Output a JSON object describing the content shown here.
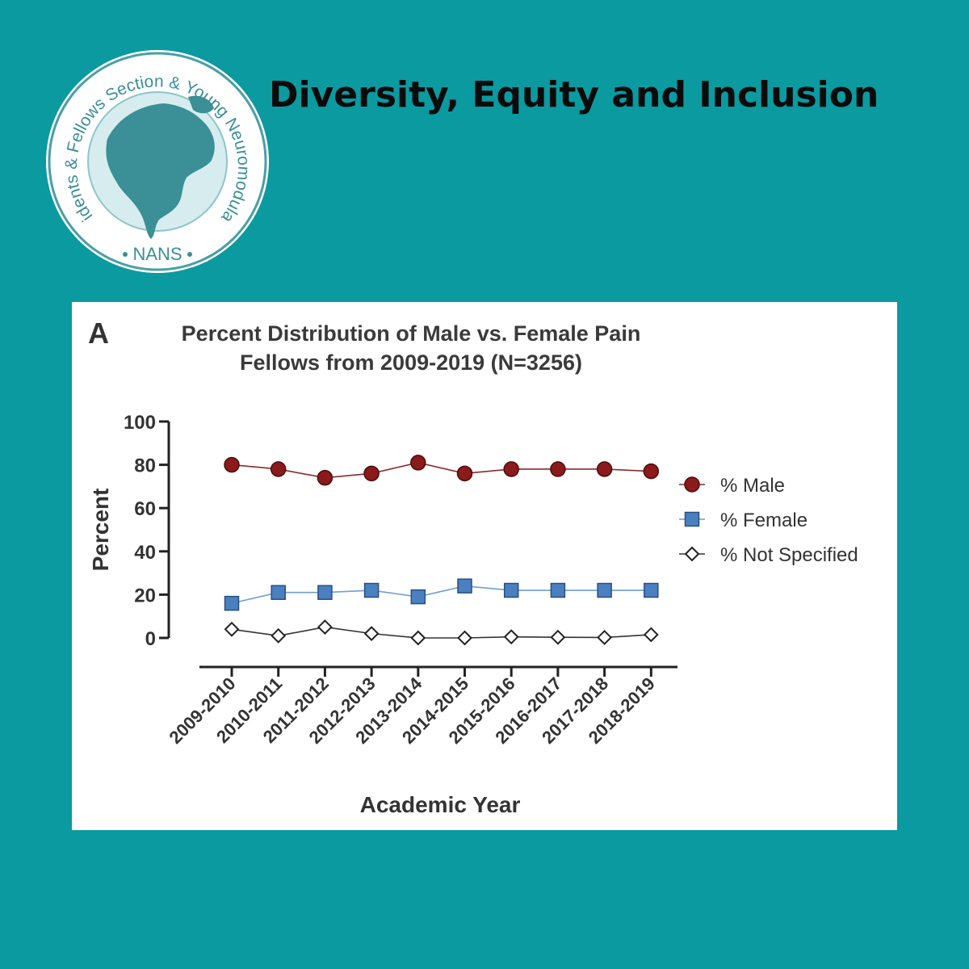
{
  "header": {
    "title": "Diversity, Equity and Inclusion"
  },
  "logo": {
    "ring_text": "Residents & Fellows Section & Young Neuromodulators",
    "org": "NANS",
    "colors": {
      "ring": "#4a9ea5",
      "map": "#3b8f96",
      "globe": "#d6ecee"
    }
  },
  "figure": {
    "panel_letter": "A"
  },
  "chart_data": {
    "type": "line",
    "title_line1": "Percent Distribution of Male vs. Female Pain",
    "title_line2": "Fellows from 2009-2019 (N=3256)",
    "xlabel": "Academic Year",
    "ylabel": "Percent",
    "ylim": [
      0,
      100
    ],
    "yticks": [
      0,
      20,
      40,
      60,
      80,
      100
    ],
    "categories": [
      "2009-2010",
      "2010-2011",
      "2011-2012",
      "2012-2013",
      "2013-2014",
      "2014-2015",
      "2015-2016",
      "2016-2017",
      "2017-2018",
      "2018-2019"
    ],
    "legend_position": "right",
    "grid": false,
    "series": [
      {
        "name": "% Male",
        "marker": "circle",
        "color": "#8b1a1a",
        "line_color": "#8b2a2a",
        "values": [
          80,
          78,
          74,
          76,
          81,
          76,
          78,
          78,
          78,
          77
        ]
      },
      {
        "name": "% Female",
        "marker": "square",
        "color": "#4a7fc0",
        "line_color": "#6f9fd0",
        "values": [
          16,
          21,
          21,
          22,
          19,
          24,
          22,
          22,
          22,
          22
        ]
      },
      {
        "name": "% Not Specified",
        "marker": "diamond",
        "color": "#ffffff",
        "line_color": "#333333",
        "values": [
          4,
          1,
          5,
          2,
          0,
          0,
          0.5,
          0.3,
          0.2,
          1.5
        ]
      }
    ]
  }
}
